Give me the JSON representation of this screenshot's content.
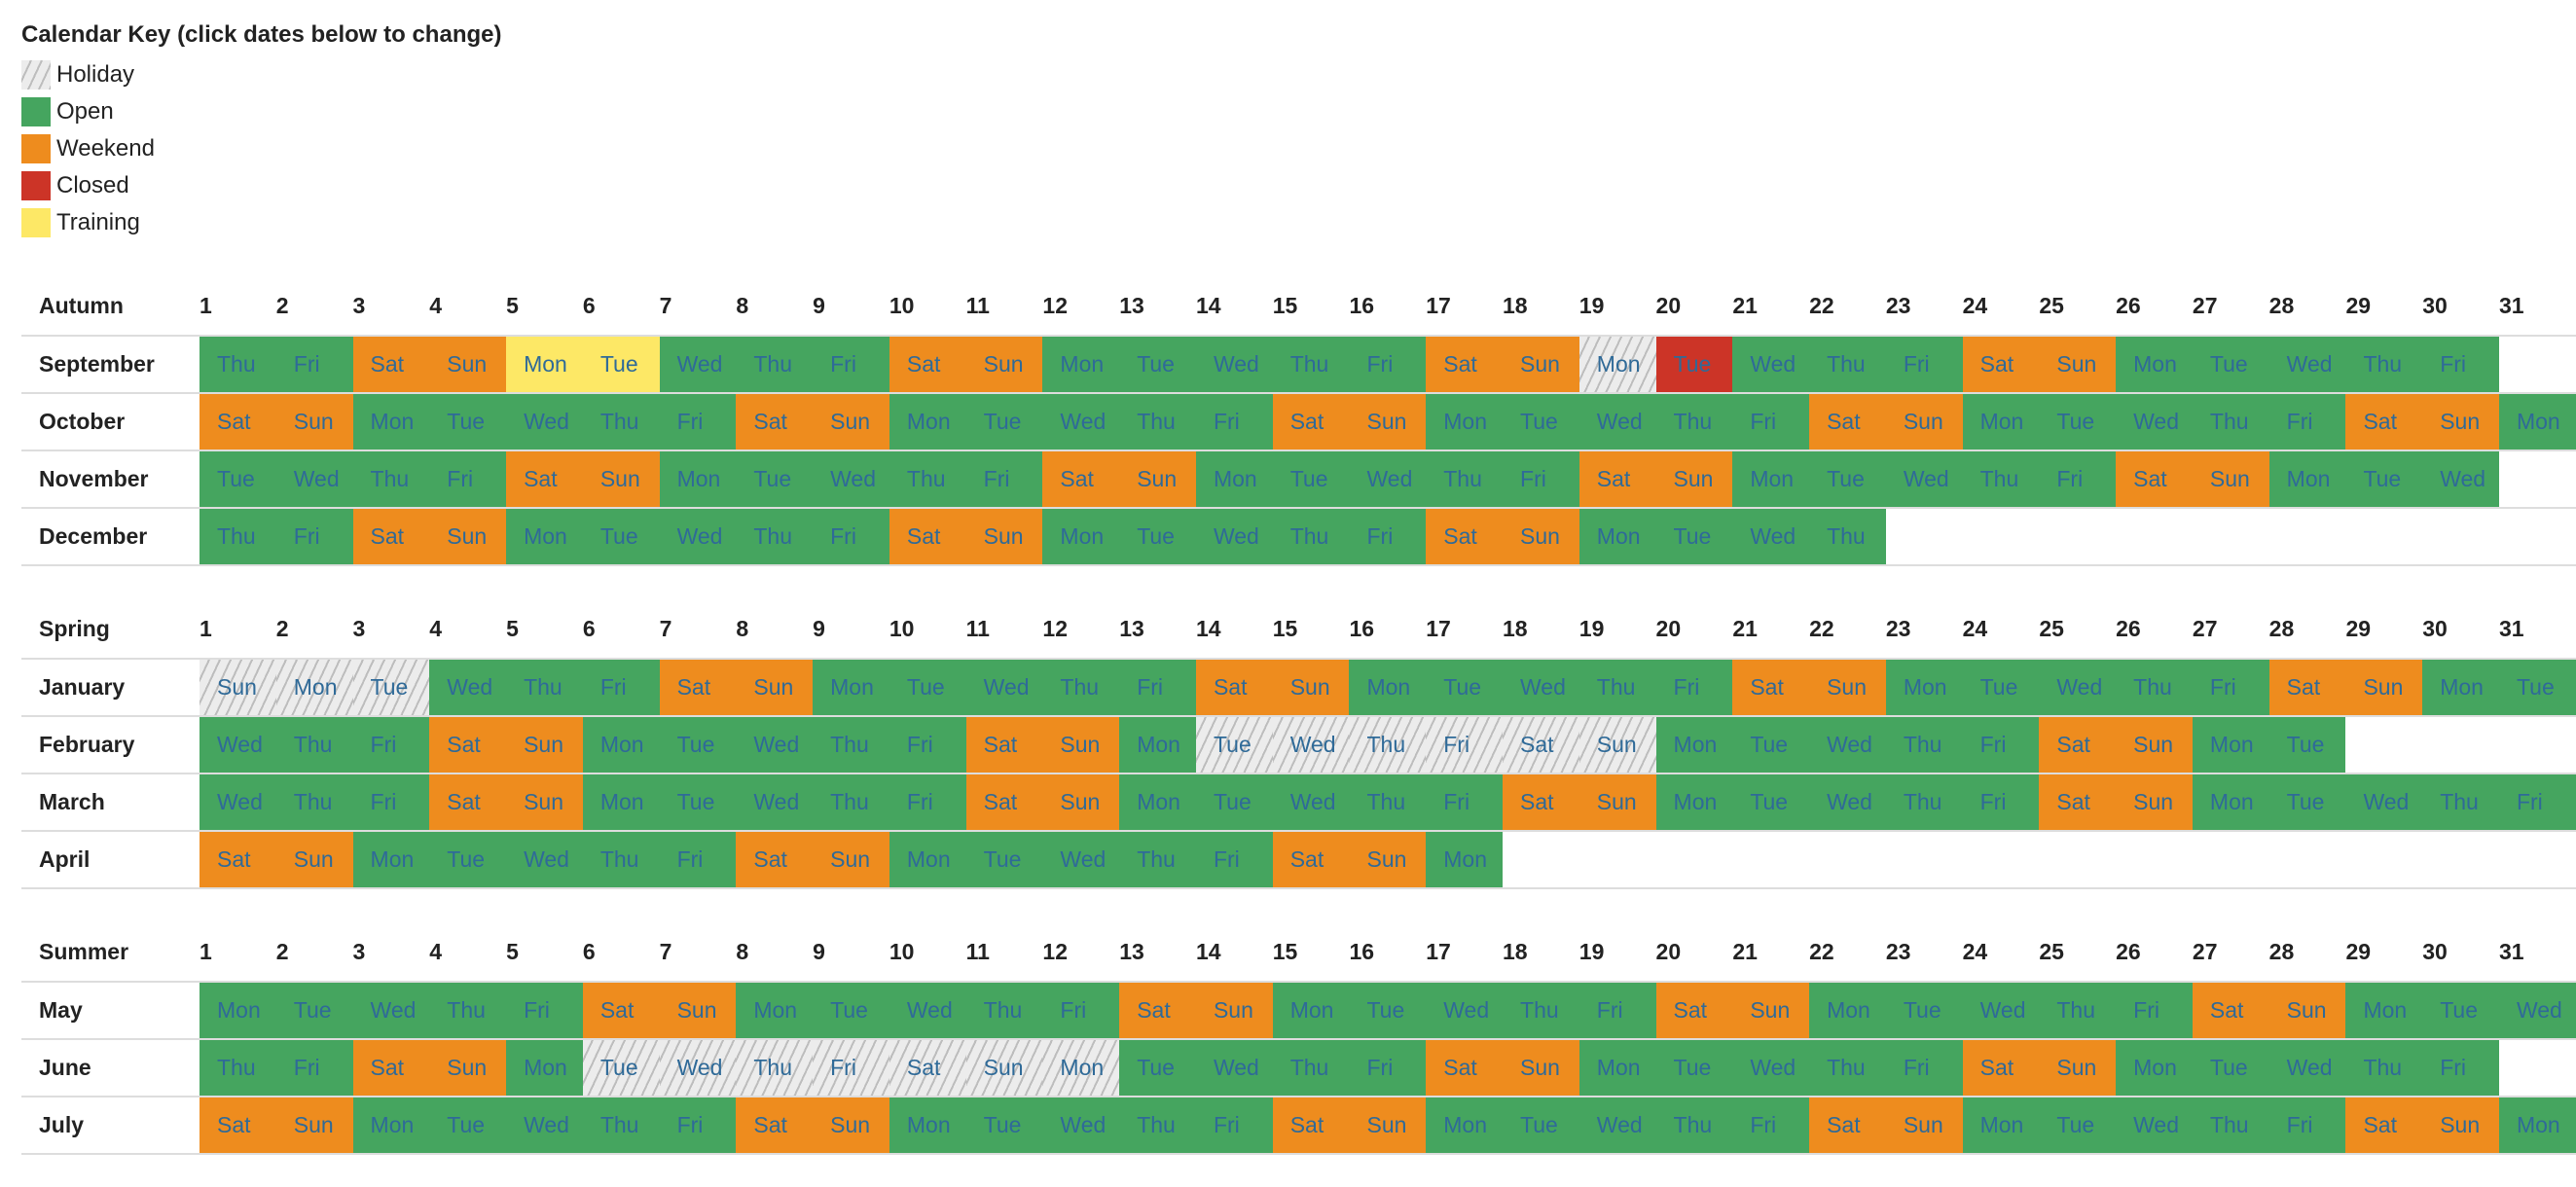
{
  "key": {
    "title": "Calendar Key (click dates below to change)",
    "items": [
      {
        "code": "H",
        "label": "Holiday"
      },
      {
        "code": "O",
        "label": "Open",
        "color": "#45a55f"
      },
      {
        "code": "W",
        "label": "Weekend",
        "color": "#ee8c1e"
      },
      {
        "code": "C",
        "label": "Closed",
        "color": "#cc3427"
      },
      {
        "code": "T",
        "label": "Training",
        "color": "#fde866"
      }
    ]
  },
  "weekdays": [
    "Sun",
    "Mon",
    "Tue",
    "Wed",
    "Thu",
    "Fri",
    "Sat"
  ],
  "seasons": [
    {
      "name": "Autumn",
      "months": [
        {
          "name": "September",
          "start": 4,
          "days": 30,
          "special": {
            "5": "T",
            "6": "T",
            "19": "H",
            "20": "C"
          }
        },
        {
          "name": "October",
          "start": 6,
          "days": 31,
          "special": {}
        },
        {
          "name": "November",
          "start": 2,
          "days": 30,
          "special": {}
        },
        {
          "name": "December",
          "start": 4,
          "days": 22,
          "special": {}
        }
      ]
    },
    {
      "name": "Spring",
      "months": [
        {
          "name": "January",
          "start": 0,
          "days": 31,
          "special": {
            "1": "H",
            "2": "H",
            "3": "H"
          }
        },
        {
          "name": "February",
          "start": 3,
          "days": 28,
          "special": {
            "14": "H",
            "15": "H",
            "16": "H",
            "17": "H",
            "18": "H",
            "19": "H"
          }
        },
        {
          "name": "March",
          "start": 3,
          "days": 31,
          "special": {}
        },
        {
          "name": "April",
          "start": 6,
          "days": 17,
          "special": {}
        }
      ]
    },
    {
      "name": "Summer",
      "months": [
        {
          "name": "May",
          "start": 1,
          "days": 31,
          "special": {}
        },
        {
          "name": "June",
          "start": 4,
          "days": 30,
          "special": {
            "6": "H",
            "7": "H",
            "8": "H",
            "9": "H",
            "10": "H",
            "11": "H",
            "12": "H"
          }
        },
        {
          "name": "July",
          "start": 6,
          "days": 31,
          "special": {}
        }
      ]
    }
  ]
}
